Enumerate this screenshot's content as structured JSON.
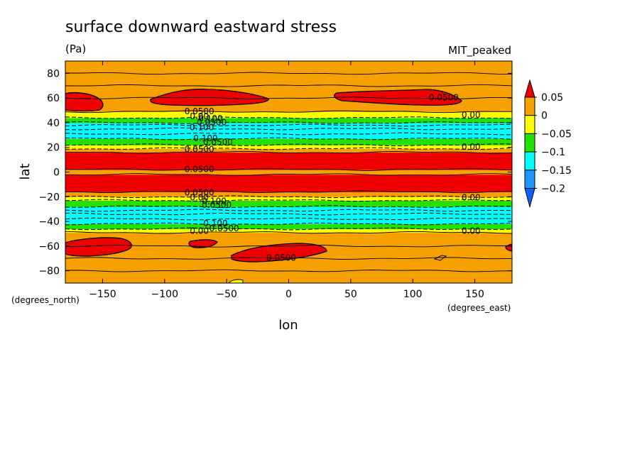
{
  "chart_data": {
    "type": "contour",
    "title": "surface downward eastward stress",
    "units": "(Pa)",
    "model": "MIT_peaked",
    "xlabel": "lon",
    "ylabel": "lat",
    "x_units": "(degrees_east)",
    "y_units": "(degrees_north)",
    "xlim": [
      -180,
      180
    ],
    "ylim": [
      -90,
      90
    ],
    "x_ticks": [
      -150,
      -100,
      -50,
      0,
      50,
      100,
      150
    ],
    "y_ticks": [
      -80,
      -60,
      -40,
      -20,
      0,
      20,
      40,
      60,
      80
    ],
    "colorbar": {
      "levels": [
        0.05,
        0,
        -0.05,
        -0.1,
        -0.15,
        -0.2
      ],
      "labels": [
        "0.05",
        "0",
        "−0.05",
        "−0.1",
        "−0.15",
        "−0.2"
      ],
      "colors": [
        "#ef0000",
        "#f6a100",
        "#ffff00",
        "#23e100",
        "#00ffff",
        "#1a96ff",
        "#1060ff"
      ]
    },
    "zonal_bands": [
      {
        "lat_min": -90,
        "lat_max": -49,
        "class": "0 to 0.05"
      },
      {
        "lat_min": -49,
        "lat_max": -46,
        "class": "-0.05 to 0"
      },
      {
        "lat_min": -46,
        "lat_max": -42,
        "class": "-0.1 to -0.05"
      },
      {
        "lat_min": -42,
        "lat_max": -28,
        "class": "-0.15 to -0.1"
      },
      {
        "lat_min": -28,
        "lat_max": -23,
        "class": "-0.1 to -0.05"
      },
      {
        "lat_min": -23,
        "lat_max": -20,
        "class": "-0.05 to 0"
      },
      {
        "lat_min": -20,
        "lat_max": -16,
        "class": "0 to 0.05"
      },
      {
        "lat_min": -16,
        "lat_max": -2,
        "class": "> 0.05"
      },
      {
        "lat_min": -2,
        "lat_max": 2,
        "class": "0 to 0.05"
      },
      {
        "lat_min": 2,
        "lat_max": 16,
        "class": "> 0.05"
      },
      {
        "lat_min": 16,
        "lat_max": 19,
        "class": "0 to 0.05"
      },
      {
        "lat_min": 19,
        "lat_max": 22,
        "class": "-0.05 to 0"
      },
      {
        "lat_min": 22,
        "lat_max": 27,
        "class": "-0.1 to -0.05"
      },
      {
        "lat_min": 27,
        "lat_max": 40,
        "class": "-0.15 to -0.1"
      },
      {
        "lat_min": 40,
        "lat_max": 44,
        "class": "-0.1 to -0.05"
      },
      {
        "lat_min": 44,
        "lat_max": 49,
        "class": "-0.05 to 0"
      },
      {
        "lat_min": 49,
        "lat_max": 90,
        "class": "0 to 0.05"
      }
    ],
    "contour_labels": [
      {
        "text": "0.0500",
        "lon": -72,
        "lat": 49
      },
      {
        "text": "0.00",
        "lon": -72,
        "lat": 45
      },
      {
        "text": "0.100",
        "lon": -63,
        "lat": 43
      },
      {
        "text": "0.0500",
        "lon": -62,
        "lat": 40
      },
      {
        "text": "0.100",
        "lon": -70,
        "lat": 36
      },
      {
        "text": "0.100",
        "lon": -67,
        "lat": 27
      },
      {
        "text": "0.0500",
        "lon": -57,
        "lat": 24
      },
      {
        "text": "0.0500",
        "lon": -72,
        "lat": 18
      },
      {
        "text": "0.0500",
        "lon": -72,
        "lat": 2
      },
      {
        "text": "0.0500",
        "lon": -72,
        "lat": -17
      },
      {
        "text": "0.00",
        "lon": -72,
        "lat": -21
      },
      {
        "text": "0.100",
        "lon": -60,
        "lat": -24
      },
      {
        "text": "0.0500",
        "lon": -58,
        "lat": -27
      },
      {
        "text": "0.100",
        "lon": -59,
        "lat": -42
      },
      {
        "text": "0.0500",
        "lon": -52,
        "lat": -46
      },
      {
        "text": "0.00",
        "lon": -72,
        "lat": -48
      },
      {
        "text": "0.0500",
        "lon": -6,
        "lat": -70
      },
      {
        "text": "0.0500",
        "lon": 125,
        "lat": 60
      },
      {
        "text": "0.00",
        "lon": 147,
        "lat": 46
      },
      {
        "text": "0.00",
        "lon": 147,
        "lat": 20
      },
      {
        "text": "0.00",
        "lon": 147,
        "lat": -21
      },
      {
        "text": "0.00",
        "lon": 147,
        "lat": -48
      }
    ]
  }
}
